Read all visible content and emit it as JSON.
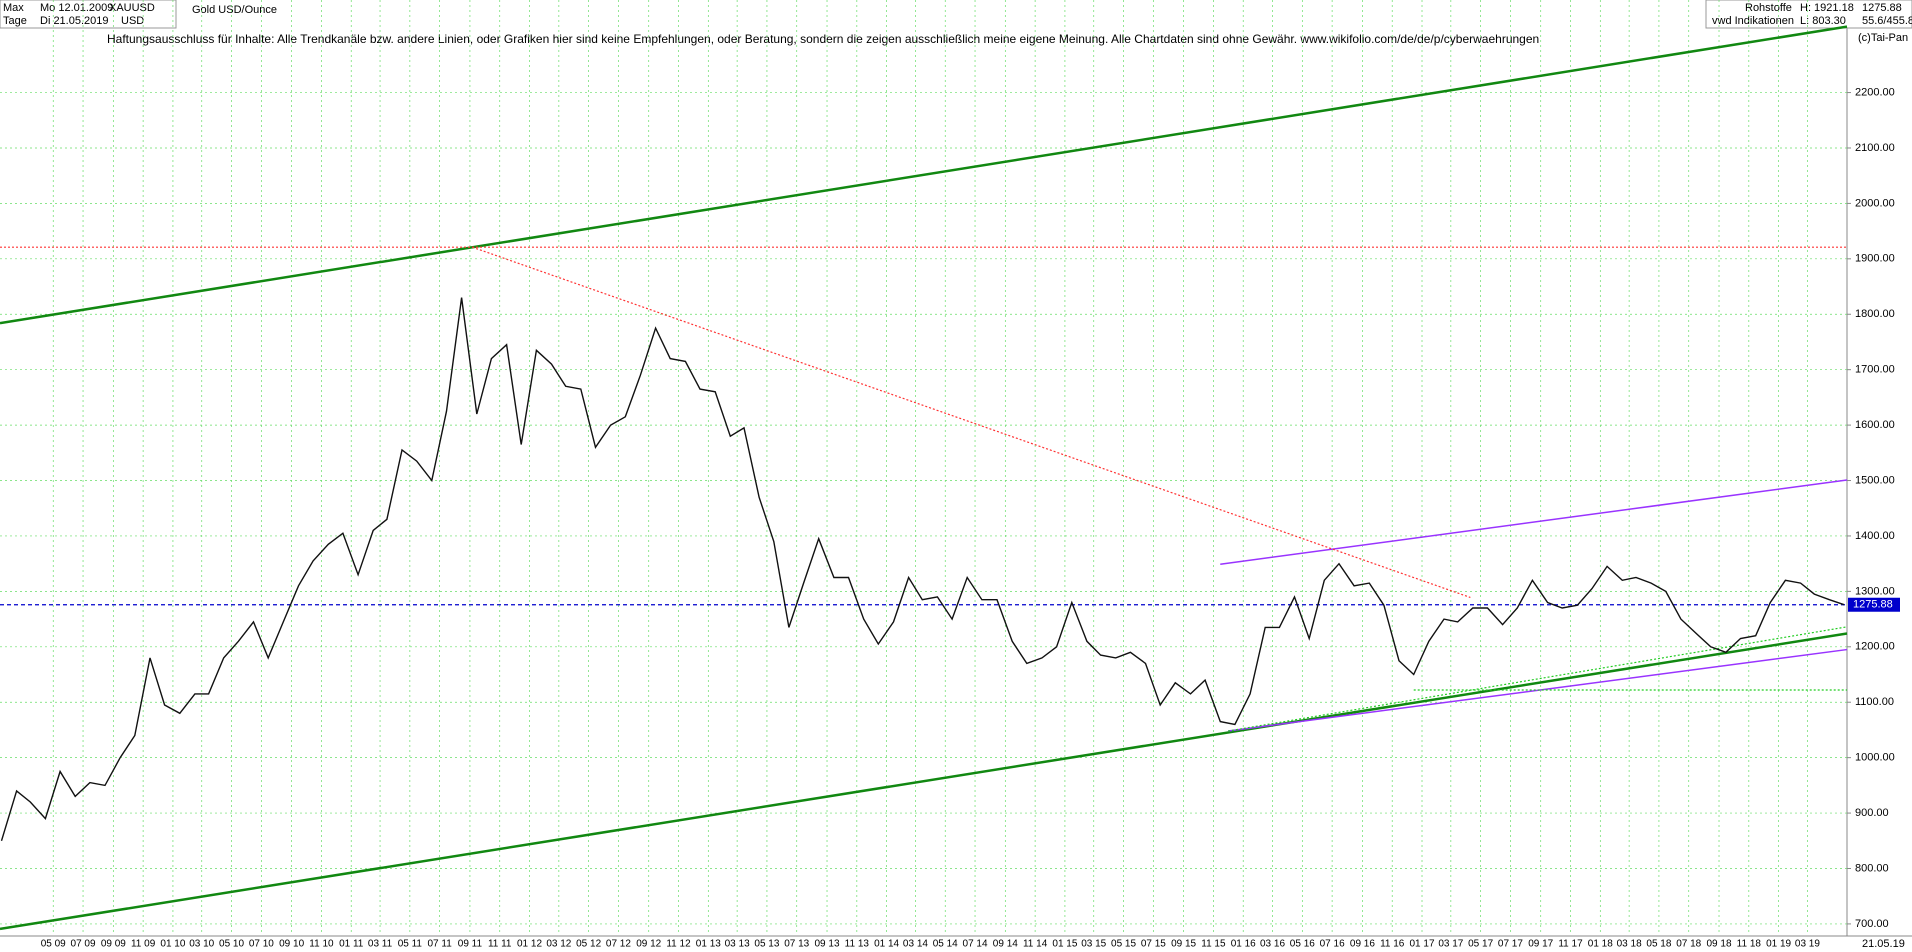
{
  "header": {
    "period": "Max",
    "start": "Mo 12.01.2009",
    "symbol": "XAUUSD",
    "name": "Gold USD/Ounce",
    "interval": "Tage",
    "end": "Di 21.05.2019",
    "currency": "USD",
    "disclaimer": "Haftungsausschluss für Inhalte: Alle Trendkanäle bzw. andere Linien, oder Grafiken hier sind keine Empfehlungen, oder Beratung, sondern die zeigen ausschließlich meine eigene Meinung. Alle Chartdaten sind ohne Gewähr.  www.wikifolio.com/de/de/p/cyberwaehrungen",
    "group": "Rohstoffe",
    "source": "vwd Indikationen",
    "high": "H: 1921.18",
    "low": "L: 803.30",
    "stats": "55.6/455.8",
    "copyright": "(c)Tai-Pan",
    "end_short": "21.05.19"
  },
  "chart_data": {
    "type": "line",
    "color": "#111111",
    "grid": true,
    "last": 1275.88,
    "last_color": "#0000cc",
    "xlim": [
      "2009-01-12",
      "2019-05-21"
    ],
    "ylim": [
      680,
      2367
    ],
    "yticks": [
      {
        "value": 700,
        "label": "700.00"
      },
      {
        "value": 800,
        "label": "800.00"
      },
      {
        "value": 900,
        "label": "900.00"
      },
      {
        "value": 1000,
        "label": "1000.00"
      },
      {
        "value": 1100,
        "label": "1100.00"
      },
      {
        "value": 1200,
        "label": "1200.00"
      },
      {
        "value": 1300,
        "label": "1300.00"
      },
      {
        "value": 1400,
        "label": "1400.00"
      },
      {
        "value": 1500,
        "label": "1500.00"
      },
      {
        "value": 1600,
        "label": "1600.00"
      },
      {
        "value": 1700,
        "label": "1700.00"
      },
      {
        "value": 1800,
        "label": "1800.00"
      },
      {
        "value": 1900,
        "label": "1900.00"
      },
      {
        "value": 2000,
        "label": "2000.00"
      },
      {
        "value": 2100,
        "label": "2100.00"
      },
      {
        "value": 2200,
        "label": "2200.00"
      }
    ],
    "xticks": [
      {
        "value": "2009-05",
        "label": "05 09"
      },
      {
        "value": "2009-07",
        "label": "07 09"
      },
      {
        "value": "2009-09",
        "label": "09 09"
      },
      {
        "value": "2009-11",
        "label": "11 09"
      },
      {
        "value": "2010-01",
        "label": "01 10"
      },
      {
        "value": "2010-03",
        "label": "03 10"
      },
      {
        "value": "2010-05",
        "label": "05 10"
      },
      {
        "value": "2010-07",
        "label": "07 10"
      },
      {
        "value": "2010-09",
        "label": "09 10"
      },
      {
        "value": "2010-11",
        "label": "11 10"
      },
      {
        "value": "2011-01",
        "label": "01 11"
      },
      {
        "value": "2011-03",
        "label": "03 11"
      },
      {
        "value": "2011-05",
        "label": "05 11"
      },
      {
        "value": "2011-07",
        "label": "07 11"
      },
      {
        "value": "2011-09",
        "label": "09 11"
      },
      {
        "value": "2011-11",
        "label": "11 11"
      },
      {
        "value": "2012-01",
        "label": "01 12"
      },
      {
        "value": "2012-03",
        "label": "03 12"
      },
      {
        "value": "2012-05",
        "label": "05 12"
      },
      {
        "value": "2012-07",
        "label": "07 12"
      },
      {
        "value": "2012-09",
        "label": "09 12"
      },
      {
        "value": "2012-11",
        "label": "11 12"
      },
      {
        "value": "2013-01",
        "label": "01 13"
      },
      {
        "value": "2013-03",
        "label": "03 13"
      },
      {
        "value": "2013-05",
        "label": "05 13"
      },
      {
        "value": "2013-07",
        "label": "07 13"
      },
      {
        "value": "2013-09",
        "label": "09 13"
      },
      {
        "value": "2013-11",
        "label": "11 13"
      },
      {
        "value": "2014-01",
        "label": "01 14"
      },
      {
        "value": "2014-03",
        "label": "03 14"
      },
      {
        "value": "2014-05",
        "label": "05 14"
      },
      {
        "value": "2014-07",
        "label": "07 14"
      },
      {
        "value": "2014-09",
        "label": "09 14"
      },
      {
        "value": "2014-11",
        "label": "11 14"
      },
      {
        "value": "2015-01",
        "label": "01 15"
      },
      {
        "value": "2015-03",
        "label": "03 15"
      },
      {
        "value": "2015-05",
        "label": "05 15"
      },
      {
        "value": "2015-07",
        "label": "07 15"
      },
      {
        "value": "2015-09",
        "label": "09 15"
      },
      {
        "value": "2015-11",
        "label": "11 15"
      },
      {
        "value": "2016-01",
        "label": "01 16"
      },
      {
        "value": "2016-03",
        "label": "03 16"
      },
      {
        "value": "2016-05",
        "label": "05 16"
      },
      {
        "value": "2016-07",
        "label": "07 16"
      },
      {
        "value": "2016-09",
        "label": "09 16"
      },
      {
        "value": "2016-11",
        "label": "11 16"
      },
      {
        "value": "2017-01",
        "label": "01 17"
      },
      {
        "value": "2017-03",
        "label": "03 17"
      },
      {
        "value": "2017-05",
        "label": "05 17"
      },
      {
        "value": "2017-07",
        "label": "07 17"
      },
      {
        "value": "2017-09",
        "label": "09 17"
      },
      {
        "value": "2017-11",
        "label": "11 17"
      },
      {
        "value": "2018-01",
        "label": "01 18"
      },
      {
        "value": "2018-03",
        "label": "03 18"
      },
      {
        "value": "2018-05",
        "label": "05 18"
      },
      {
        "value": "2018-07",
        "label": "07 18"
      },
      {
        "value": "2018-09",
        "label": "09 18"
      },
      {
        "value": "2018-11",
        "label": "11 18"
      },
      {
        "value": "2019-01",
        "label": "01 19"
      },
      {
        "value": "2019-03",
        "label": "03 19"
      }
    ],
    "x": [
      "2009-01",
      "2009-02",
      "2009-03",
      "2009-04",
      "2009-05",
      "2009-06",
      "2009-07",
      "2009-08",
      "2009-09",
      "2009-10",
      "2009-11",
      "2009-12",
      "2010-01",
      "2010-02",
      "2010-03",
      "2010-04",
      "2010-05",
      "2010-06",
      "2010-07",
      "2010-08",
      "2010-09",
      "2010-10",
      "2010-11",
      "2010-12",
      "2011-01",
      "2011-02",
      "2011-03",
      "2011-04",
      "2011-05",
      "2011-06",
      "2011-07",
      "2011-08",
      "2011-09",
      "2011-10",
      "2011-11",
      "2011-12",
      "2012-01",
      "2012-02",
      "2012-03",
      "2012-04",
      "2012-05",
      "2012-06",
      "2012-07",
      "2012-08",
      "2012-09",
      "2012-10",
      "2012-11",
      "2012-12",
      "2013-01",
      "2013-02",
      "2013-03",
      "2013-04",
      "2013-05",
      "2013-06",
      "2013-07",
      "2013-08",
      "2013-09",
      "2013-10",
      "2013-11",
      "2013-12",
      "2014-01",
      "2014-02",
      "2014-03",
      "2014-04",
      "2014-05",
      "2014-06",
      "2014-07",
      "2014-08",
      "2014-09",
      "2014-10",
      "2014-11",
      "2014-12",
      "2015-01",
      "2015-02",
      "2015-03",
      "2015-04",
      "2015-05",
      "2015-06",
      "2015-07",
      "2015-08",
      "2015-09",
      "2015-10",
      "2015-11",
      "2015-12",
      "2016-01",
      "2016-02",
      "2016-03",
      "2016-04",
      "2016-05",
      "2016-06",
      "2016-07",
      "2016-08",
      "2016-09",
      "2016-10",
      "2016-11",
      "2016-12",
      "2017-01",
      "2017-02",
      "2017-03",
      "2017-04",
      "2017-05",
      "2017-06",
      "2017-07",
      "2017-08",
      "2017-09",
      "2017-10",
      "2017-11",
      "2017-12",
      "2018-01",
      "2018-02",
      "2018-03",
      "2018-04",
      "2018-05",
      "2018-06",
      "2018-07",
      "2018-08",
      "2018-09",
      "2018-10",
      "2018-11",
      "2018-12",
      "2019-01",
      "2019-02",
      "2019-03",
      "2019-04",
      "2019-05"
    ],
    "values": [
      850,
      940,
      920,
      890,
      975,
      930,
      955,
      950,
      1000,
      1040,
      1180,
      1095,
      1080,
      1115,
      1115,
      1180,
      1210,
      1245,
      1180,
      1245,
      1310,
      1355,
      1385,
      1405,
      1330,
      1410,
      1430,
      1555,
      1535,
      1500,
      1625,
      1830,
      1620,
      1720,
      1745,
      1565,
      1735,
      1710,
      1670,
      1665,
      1560,
      1600,
      1615,
      1690,
      1775,
      1720,
      1715,
      1665,
      1660,
      1580,
      1595,
      1470,
      1390,
      1235,
      1315,
      1395,
      1325,
      1325,
      1250,
      1205,
      1245,
      1325,
      1285,
      1290,
      1250,
      1325,
      1285,
      1285,
      1210,
      1170,
      1180,
      1200,
      1280,
      1210,
      1185,
      1180,
      1190,
      1170,
      1095,
      1135,
      1115,
      1140,
      1065,
      1060,
      1115,
      1235,
      1235,
      1290,
      1215,
      1320,
      1350,
      1310,
      1315,
      1275,
      1175,
      1150,
      1210,
      1250,
      1245,
      1270,
      1270,
      1240,
      1270,
      1320,
      1280,
      1270,
      1275,
      1305,
      1345,
      1320,
      1325,
      1315,
      1300,
      1250,
      1225,
      1200,
      1190,
      1215,
      1220,
      1280,
      1320,
      1315,
      1295,
      1285,
      1275.88
    ],
    "lines": [
      {
        "color": "#118811",
        "style": "solid",
        "x": [
          "2009-01-12",
          "2019-05-21"
        ],
        "y": [
          1784,
          2319
        ]
      },
      {
        "color": "#118811",
        "style": "solid",
        "x": [
          "2009-01-12",
          "2019-05-21"
        ],
        "y": [
          691,
          1224
        ]
      },
      {
        "color": "#9933ff",
        "style": "solid",
        "x": [
          "2015-11-15",
          "2019-05-21"
        ],
        "y": [
          1349,
          1501
        ]
      },
      {
        "color": "#9933ff",
        "style": "solid",
        "x": [
          "2015-12-01",
          "2019-05-21"
        ],
        "y": [
          1048,
          1195
        ]
      },
      {
        "color": "#ff3333",
        "style": "dotted",
        "x": [
          "2009-01-12",
          "2019-05-21"
        ],
        "y": [
          1921,
          1921
        ]
      },
      {
        "color": "#ff3333",
        "style": "dotted",
        "x": [
          "2011-09-06",
          "2017-04-10"
        ],
        "y": [
          1921,
          1289
        ]
      },
      {
        "color": "#22cc22",
        "style": "dotted",
        "x": [
          "2015-12-01",
          "2019-05-21"
        ],
        "y": [
          1048,
          1236
        ]
      },
      {
        "color": "#22cc22",
        "style": "dotted",
        "x": [
          "2016-12-15",
          "2019-05-21"
        ],
        "y": [
          1122,
          1122
        ]
      }
    ]
  }
}
